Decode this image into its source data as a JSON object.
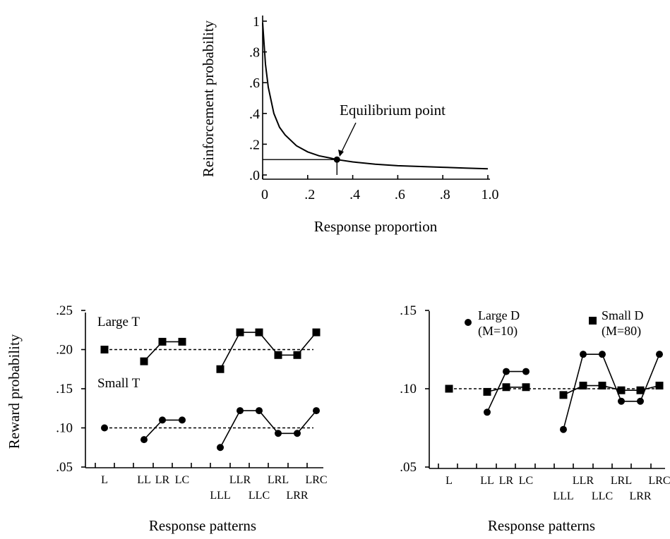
{
  "chart_data": [
    {
      "type": "line",
      "ylabel": "Reinforcement  probability",
      "xlabel": "Response  proportion",
      "xlim": [
        0,
        1.0
      ],
      "ylim": [
        0,
        1.0
      ],
      "x_ticks": [
        "0",
        ".2",
        ".4",
        ".6",
        ".8",
        "1.0"
      ],
      "y_ticks": [
        ".0",
        ".2",
        ".4",
        ".6",
        ".8",
        "1"
      ],
      "series": [
        {
          "x": [
            0.0,
            0.0125,
            0.025,
            0.05,
            0.075,
            0.1,
            0.15,
            0.2,
            0.25,
            0.3,
            0.33,
            0.4,
            0.5,
            0.6,
            0.7,
            0.8,
            0.9,
            1.0
          ],
          "y": [
            0.99,
            0.72,
            0.57,
            0.4,
            0.31,
            0.26,
            0.19,
            0.15,
            0.125,
            0.11,
            0.1,
            0.085,
            0.07,
            0.06,
            0.055,
            0.05,
            0.045,
            0.04
          ]
        }
      ],
      "annotations": [
        {
          "text": "Equilibrium point",
          "x": 0.33,
          "y": 0.1
        }
      ]
    },
    {
      "type": "line",
      "ylabel": "Reward probability",
      "xlabel": "Response patterns",
      "ylim": [
        0.05,
        0.25
      ],
      "y_ticks": [
        ".05",
        ".10",
        ".15",
        ".20",
        ".25"
      ],
      "categories": [
        "L",
        "LL",
        "LR",
        "LC",
        "LLL",
        "LLR",
        "LLC",
        "LRL",
        "LRR",
        "LRC"
      ],
      "series": [
        {
          "name": "Large T",
          "marker": "square",
          "reference": 0.2,
          "values": [
            0.2,
            0.185,
            0.21,
            0.21,
            0.175,
            0.222,
            0.222,
            0.193,
            0.193,
            0.222
          ]
        },
        {
          "name": "Small T",
          "marker": "circle",
          "reference": 0.1,
          "values": [
            0.1,
            0.085,
            0.11,
            0.11,
            0.075,
            0.122,
            0.122,
            0.093,
            0.093,
            0.122
          ]
        }
      ]
    },
    {
      "type": "line",
      "xlabel": "Response patterns",
      "ylim": [
        0.05,
        0.15
      ],
      "y_ticks": [
        ".05",
        ".10",
        ".15"
      ],
      "categories": [
        "L",
        "LL",
        "LR",
        "LC",
        "LLL",
        "LLR",
        "LLC",
        "LRL",
        "LRR",
        "LRC"
      ],
      "reference": 0.1,
      "series": [
        {
          "name": "Large D",
          "sublabel": "(M=10)",
          "marker": "circle",
          "values": [
            null,
            0.085,
            0.111,
            0.111,
            0.074,
            0.122,
            0.122,
            0.092,
            0.092,
            0.122
          ]
        },
        {
          "name": "Small D",
          "sublabel": "(M=80)",
          "marker": "square",
          "values": [
            0.1,
            0.098,
            0.101,
            0.101,
            0.096,
            0.102,
            0.102,
            0.099,
            0.099,
            0.102
          ]
        }
      ]
    }
  ]
}
